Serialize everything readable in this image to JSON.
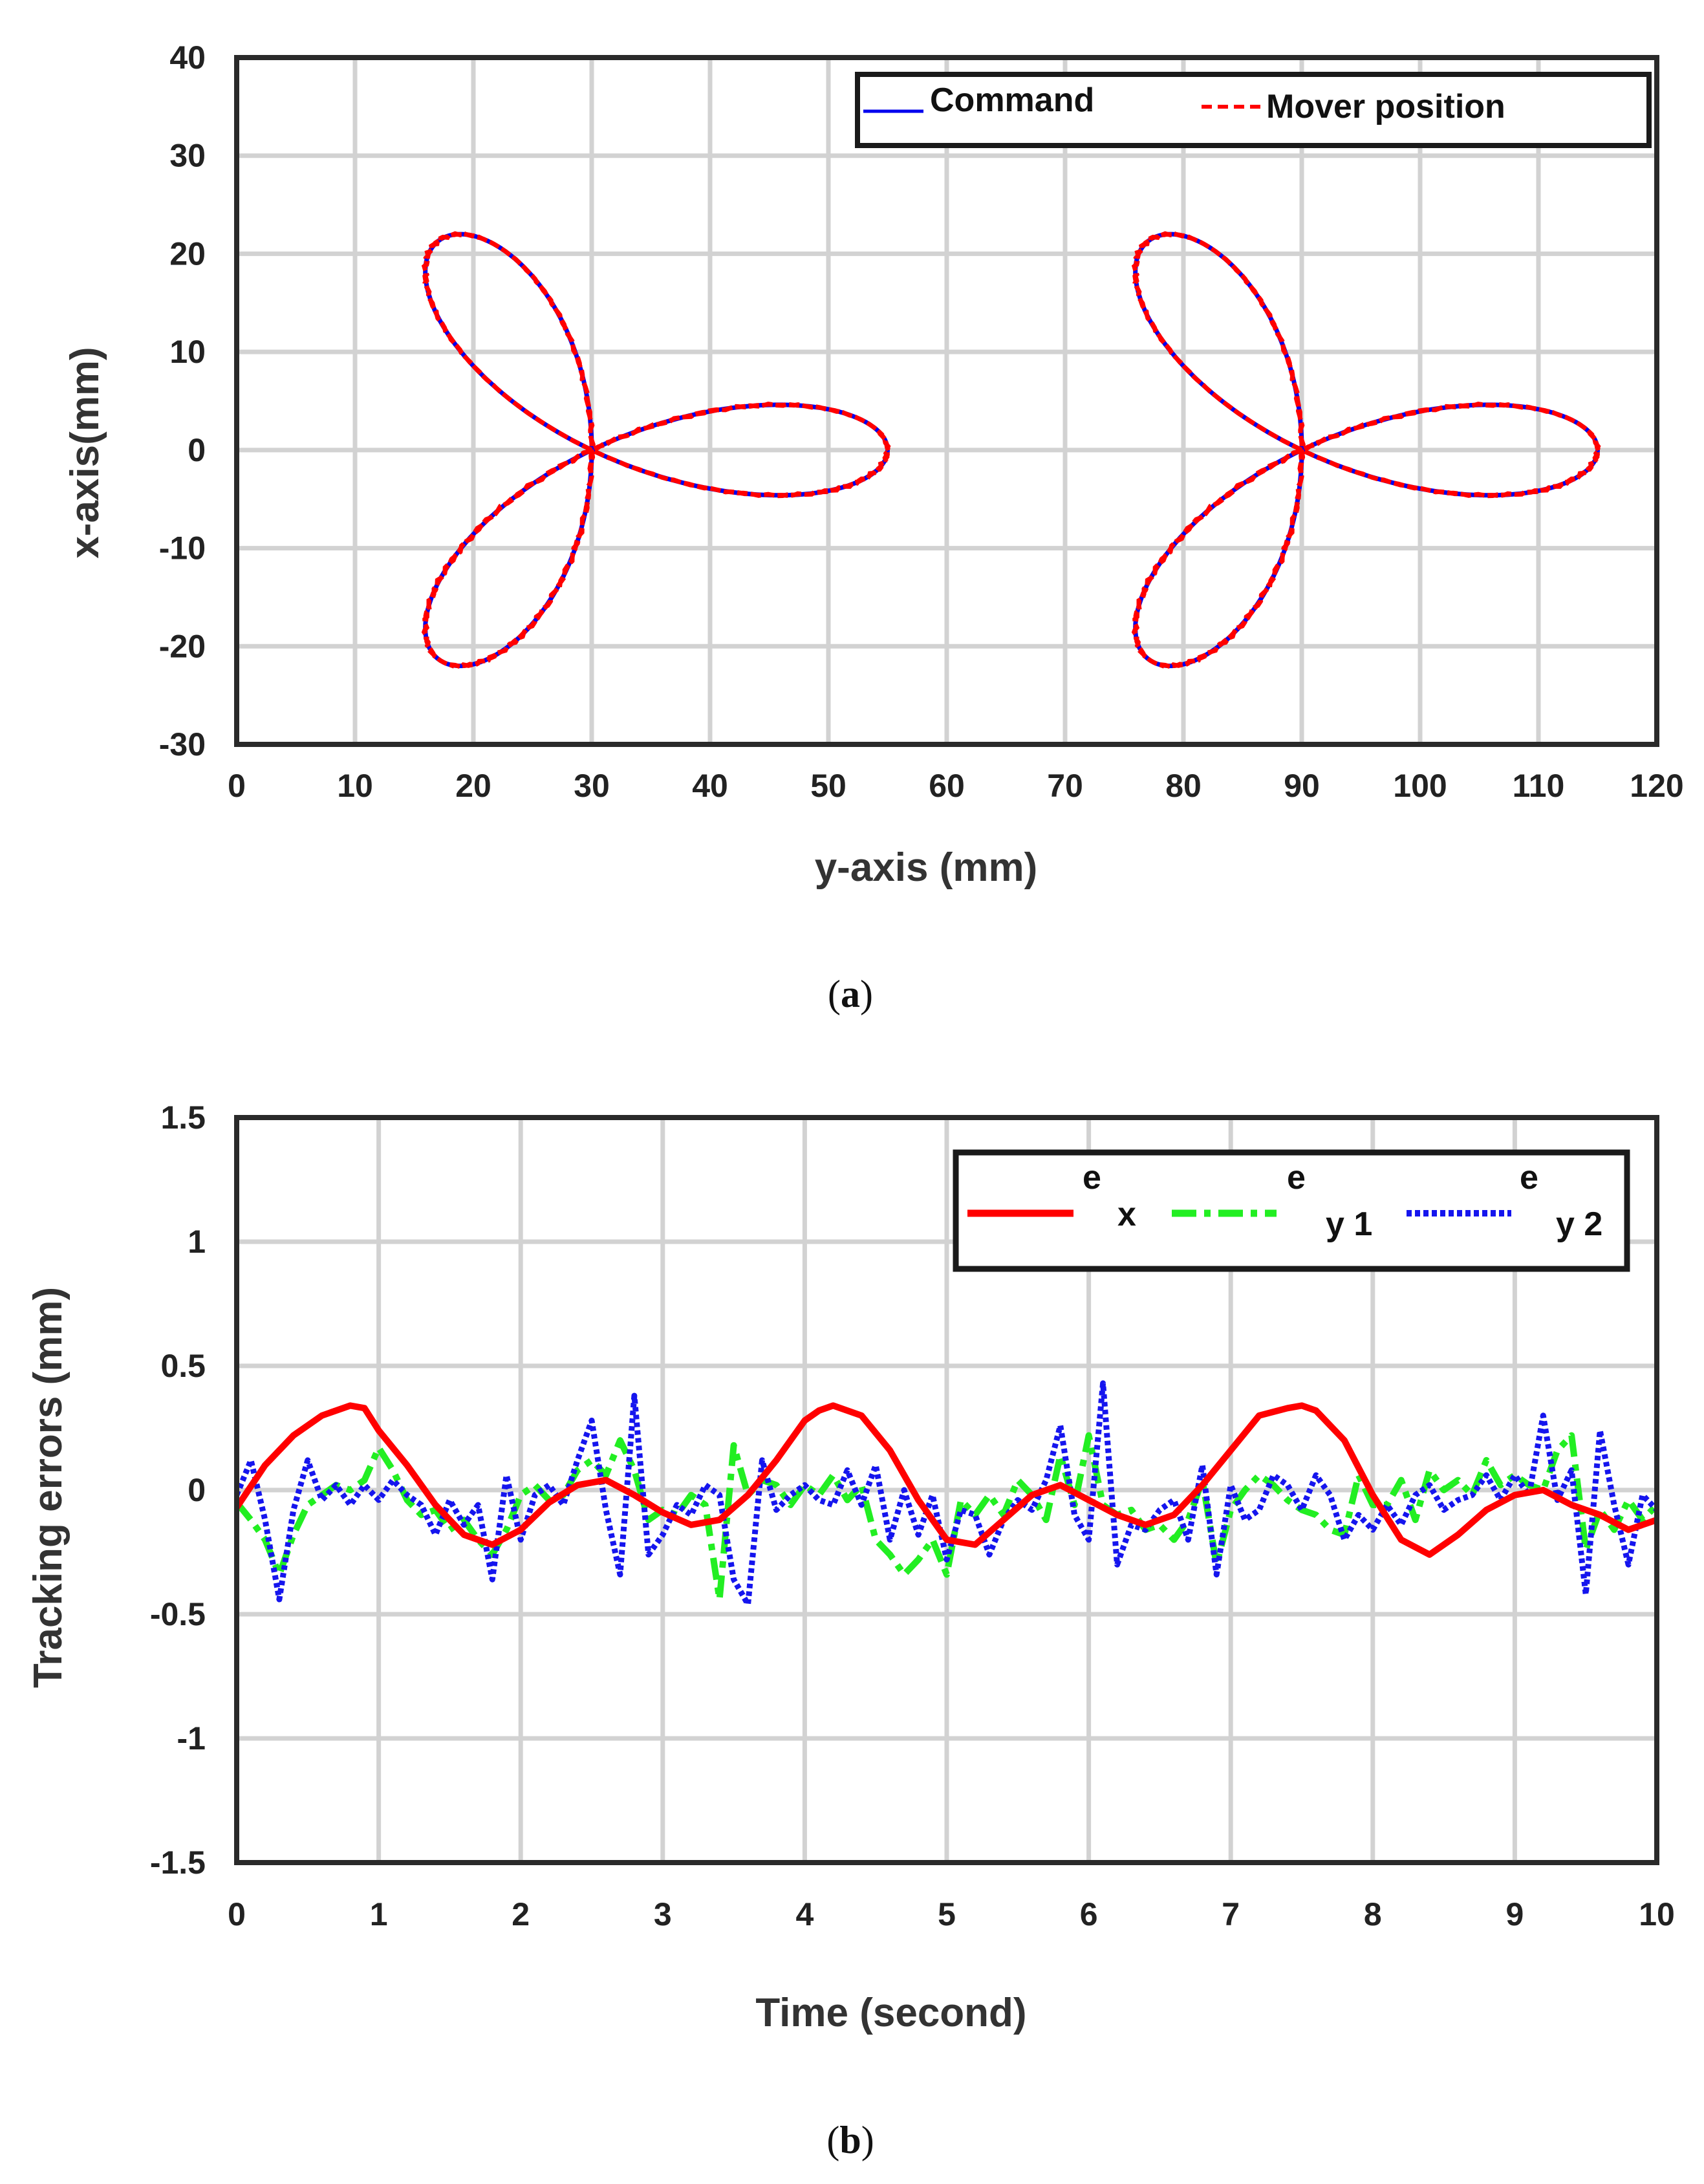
{
  "chart_data": [
    {
      "panel": "a",
      "caption_letter": "a",
      "type": "line",
      "title": "",
      "xlabel": "y-axis (mm)",
      "ylabel": "x-axis(mm)",
      "xlim": [
        0,
        120
      ],
      "ylim": [
        -30,
        40
      ],
      "xticks": [
        "0",
        "10",
        "20",
        "30",
        "40",
        "50",
        "60",
        "70",
        "80",
        "90",
        "100",
        "110",
        "120"
      ],
      "yticks": [
        "40",
        "30",
        "20",
        "10",
        "0",
        "-10",
        "-20",
        "-30"
      ],
      "xtick_values": [
        0,
        10,
        20,
        30,
        40,
        50,
        60,
        70,
        80,
        90,
        100,
        110,
        120
      ],
      "ytick_values": [
        40,
        30,
        20,
        10,
        0,
        -10,
        -20,
        -30
      ],
      "grid": true,
      "legend_position": "top-right",
      "curve_model": {
        "kind": "three-leaf rose",
        "radius_mm": 25,
        "centers_y_mm": [
          30,
          90
        ],
        "center_x_mm": 0
      },
      "series": [
        {
          "name": "Command",
          "color": "#0000ee",
          "style": "solid"
        },
        {
          "name": "Mover position",
          "color": "#ff0000",
          "style": "dashed"
        }
      ]
    },
    {
      "panel": "b",
      "caption_letter": "b",
      "type": "line",
      "title": "",
      "xlabel": "Time (second)",
      "ylabel": "Tracking errors (mm)",
      "xlim": [
        0,
        10
      ],
      "ylim": [
        -1.5,
        1.5
      ],
      "xticks": [
        "0",
        "1",
        "2",
        "3",
        "4",
        "5",
        "6",
        "7",
        "8",
        "9",
        "10"
      ],
      "yticks": [
        "1.5",
        "1",
        "0.5",
        "0",
        "-0.5",
        "-1",
        "-1.5"
      ],
      "xtick_values": [
        0,
        1,
        2,
        3,
        4,
        5,
        6,
        7,
        8,
        9,
        10
      ],
      "ytick_values": [
        1.5,
        1,
        0.5,
        0,
        -0.5,
        -1,
        -1.5
      ],
      "grid": true,
      "legend_position": "top-right",
      "series": [
        {
          "name": "e",
          "subscript": "x",
          "color": "#ff0000",
          "style": "solid",
          "x": [
            0,
            0.2,
            0.4,
            0.6,
            0.8,
            0.9,
            1.0,
            1.2,
            1.4,
            1.6,
            1.8,
            2.0,
            2.2,
            2.4,
            2.6,
            2.8,
            3.0,
            3.2,
            3.4,
            3.6,
            3.8,
            4.0,
            4.1,
            4.2,
            4.4,
            4.6,
            4.8,
            5.0,
            5.2,
            5.4,
            5.6,
            5.8,
            6.0,
            6.2,
            6.4,
            6.6,
            6.8,
            7.0,
            7.2,
            7.4,
            7.5,
            7.6,
            7.8,
            8.0,
            8.2,
            8.4,
            8.6,
            8.8,
            9.0,
            9.2,
            9.4,
            9.6,
            9.8,
            10.0
          ],
          "y": [
            -0.07,
            0.1,
            0.22,
            0.3,
            0.34,
            0.33,
            0.24,
            0.1,
            -0.06,
            -0.18,
            -0.22,
            -0.16,
            -0.05,
            0.02,
            0.04,
            -0.02,
            -0.09,
            -0.14,
            -0.12,
            -0.02,
            0.12,
            0.28,
            0.32,
            0.34,
            0.3,
            0.16,
            -0.04,
            -0.2,
            -0.22,
            -0.12,
            -0.02,
            0.02,
            -0.04,
            -0.1,
            -0.14,
            -0.1,
            0.02,
            0.16,
            0.3,
            0.33,
            0.34,
            0.32,
            0.2,
            -0.02,
            -0.2,
            -0.26,
            -0.18,
            -0.08,
            -0.02,
            0.0,
            -0.06,
            -0.1,
            -0.16,
            -0.12
          ]
        },
        {
          "name": "e",
          "subscript": "y 1",
          "color": "#22ee22",
          "style": "dashdot",
          "x": [
            0,
            0.1,
            0.2,
            0.3,
            0.4,
            0.5,
            0.6,
            0.7,
            0.8,
            0.9,
            1.0,
            1.1,
            1.2,
            1.3,
            1.4,
            1.5,
            1.6,
            1.7,
            1.8,
            1.9,
            2.0,
            2.1,
            2.2,
            2.3,
            2.4,
            2.5,
            2.6,
            2.7,
            2.8,
            2.9,
            3.0,
            3.1,
            3.2,
            3.3,
            3.4,
            3.5,
            3.6,
            3.7,
            3.8,
            3.9,
            4.0,
            4.1,
            4.2,
            4.3,
            4.4,
            4.5,
            4.6,
            4.7,
            4.8,
            4.9,
            5.0,
            5.1,
            5.2,
            5.3,
            5.4,
            5.5,
            5.6,
            5.7,
            5.8,
            5.9,
            6.0,
            6.1,
            6.2,
            6.3,
            6.4,
            6.5,
            6.6,
            6.7,
            6.8,
            6.9,
            7.0,
            7.1,
            7.2,
            7.3,
            7.4,
            7.5,
            7.6,
            7.7,
            7.8,
            7.9,
            8.0,
            8.1,
            8.2,
            8.3,
            8.4,
            8.5,
            8.6,
            8.7,
            8.8,
            8.9,
            9.0,
            9.1,
            9.2,
            9.3,
            9.4,
            9.5,
            9.6,
            9.7,
            9.8,
            9.9,
            10.0
          ],
          "y": [
            -0.05,
            -0.12,
            -0.2,
            -0.34,
            -0.18,
            -0.06,
            -0.02,
            0.02,
            0.0,
            0.04,
            0.17,
            0.08,
            -0.04,
            -0.1,
            -0.08,
            -0.16,
            -0.12,
            -0.2,
            -0.26,
            -0.16,
            -0.02,
            0.02,
            -0.04,
            -0.02,
            0.08,
            0.12,
            0.06,
            0.2,
            0.08,
            -0.12,
            -0.08,
            -0.1,
            -0.02,
            -0.06,
            -0.44,
            0.18,
            -0.02,
            0.04,
            0.02,
            -0.06,
            0.02,
            -0.02,
            0.06,
            -0.04,
            0.02,
            -0.2,
            -0.26,
            -0.34,
            -0.28,
            -0.2,
            -0.34,
            -0.04,
            -0.1,
            -0.02,
            -0.1,
            0.04,
            -0.02,
            -0.12,
            0.14,
            -0.06,
            0.22,
            -0.06,
            -0.1,
            -0.08,
            -0.16,
            -0.14,
            -0.2,
            -0.12,
            0.04,
            -0.3,
            -0.08,
            0.0,
            0.06,
            0.02,
            -0.04,
            -0.08,
            -0.1,
            -0.16,
            -0.18,
            0.06,
            -0.06,
            -0.06,
            0.04,
            -0.12,
            0.08,
            0.0,
            0.04,
            -0.02,
            0.12,
            0.02,
            0.06,
            0.02,
            0.0,
            0.16,
            0.22,
            -0.24,
            -0.08,
            -0.16,
            -0.04,
            -0.12,
            -0.06
          ]
        },
        {
          "name": "e",
          "subscript": "y 2",
          "color": "#1515ee",
          "style": "dotted",
          "x": [
            0,
            0.1,
            0.2,
            0.3,
            0.4,
            0.5,
            0.6,
            0.7,
            0.8,
            0.9,
            1.0,
            1.1,
            1.2,
            1.3,
            1.4,
            1.5,
            1.6,
            1.7,
            1.8,
            1.9,
            2.0,
            2.1,
            2.2,
            2.3,
            2.4,
            2.5,
            2.6,
            2.7,
            2.8,
            2.9,
            3.0,
            3.1,
            3.2,
            3.3,
            3.4,
            3.5,
            3.6,
            3.7,
            3.8,
            3.9,
            4.0,
            4.1,
            4.2,
            4.3,
            4.4,
            4.5,
            4.6,
            4.7,
            4.8,
            4.9,
            5.0,
            5.1,
            5.2,
            5.3,
            5.4,
            5.5,
            5.6,
            5.7,
            5.8,
            5.9,
            6.0,
            6.1,
            6.2,
            6.3,
            6.4,
            6.5,
            6.6,
            6.7,
            6.8,
            6.9,
            7.0,
            7.1,
            7.2,
            7.3,
            7.4,
            7.5,
            7.6,
            7.7,
            7.8,
            7.9,
            8.0,
            8.1,
            8.2,
            8.3,
            8.4,
            8.5,
            8.6,
            8.7,
            8.8,
            8.9,
            9.0,
            9.1,
            9.2,
            9.3,
            9.4,
            9.5,
            9.6,
            9.7,
            9.8,
            9.9,
            10.0
          ],
          "y": [
            -0.02,
            0.12,
            -0.12,
            -0.44,
            -0.08,
            0.12,
            -0.04,
            0.02,
            -0.06,
            0.02,
            -0.04,
            0.04,
            -0.02,
            -0.06,
            -0.18,
            -0.04,
            -0.14,
            -0.06,
            -0.36,
            0.06,
            -0.2,
            -0.02,
            0.02,
            -0.06,
            0.12,
            0.28,
            -0.08,
            -0.34,
            0.38,
            -0.26,
            -0.18,
            -0.06,
            -0.1,
            0.02,
            -0.02,
            -0.36,
            -0.46,
            0.12,
            -0.08,
            -0.02,
            0.02,
            -0.04,
            -0.06,
            0.08,
            -0.06,
            0.1,
            -0.2,
            0.0,
            -0.18,
            -0.02,
            -0.28,
            -0.08,
            -0.1,
            -0.26,
            -0.12,
            -0.04,
            -0.08,
            0.04,
            0.26,
            -0.1,
            -0.2,
            0.43,
            -0.3,
            -0.14,
            -0.16,
            -0.08,
            -0.04,
            -0.2,
            0.1,
            -0.34,
            0.02,
            -0.12,
            -0.08,
            0.06,
            0.02,
            -0.08,
            0.06,
            -0.02,
            -0.2,
            -0.1,
            -0.16,
            -0.06,
            -0.14,
            -0.02,
            0.02,
            -0.08,
            -0.04,
            -0.02,
            0.06,
            -0.04,
            0.06,
            -0.02,
            0.3,
            -0.04,
            0.08,
            -0.42,
            0.24,
            -0.06,
            -0.3,
            -0.02,
            -0.08
          ]
        }
      ]
    }
  ]
}
